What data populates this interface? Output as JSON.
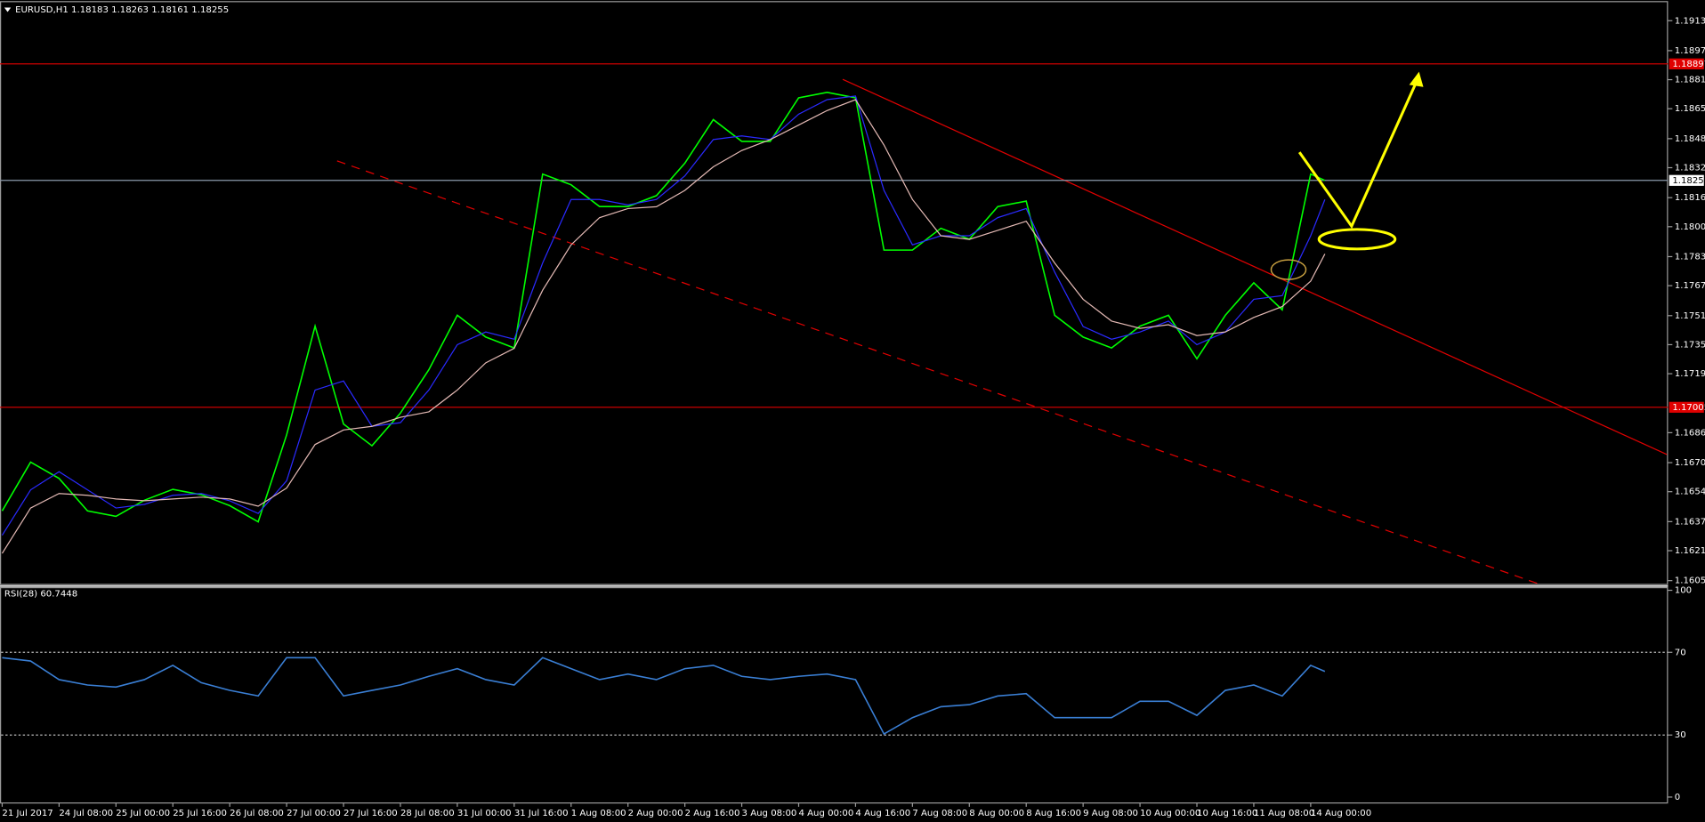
{
  "chart_data": [
    {
      "type": "line",
      "title": "EURUSD,H1  1.18183 1.18263 1.18161 1.18255",
      "x": [
        0,
        8,
        16,
        24,
        32,
        40,
        48,
        56,
        64,
        72,
        80,
        88,
        96,
        104,
        112,
        120,
        128,
        136,
        144,
        152,
        160,
        168,
        176,
        184,
        192,
        200,
        208,
        216,
        224,
        232,
        240,
        248,
        256,
        264,
        272,
        280,
        288,
        296,
        304,
        312,
        320,
        328,
        336,
        344,
        352,
        360,
        368,
        372
      ],
      "series": [
        {
          "color": "#00ff00",
          "values": [
            1.16434,
            1.16703,
            1.16613,
            1.16434,
            1.16404,
            1.16493,
            1.16553,
            1.16523,
            1.16463,
            1.16374,
            1.16853,
            1.17452,
            1.16913,
            1.16793,
            1.16973,
            1.17212,
            1.17512,
            1.17392,
            1.17332,
            1.1829,
            1.18231,
            1.18111,
            1.18111,
            1.18171,
            1.1835,
            1.1859,
            1.1847,
            1.1847,
            1.1871,
            1.1874,
            1.1871,
            1.17871,
            1.17871,
            1.17991,
            1.17931,
            1.18111,
            1.18141,
            1.17512,
            1.17392,
            1.17332,
            1.17452,
            1.17512,
            1.17272,
            1.17512,
            1.17691,
            1.17542,
            1.1829,
            1.18255
          ]
        },
        {
          "color": "#2a2aff",
          "values": [
            1.163,
            1.1655,
            1.1665,
            1.1655,
            1.1645,
            1.1647,
            1.1652,
            1.1653,
            1.1649,
            1.1642,
            1.166,
            1.171,
            1.1715,
            1.169,
            1.1692,
            1.171,
            1.1735,
            1.1742,
            1.1738,
            1.178,
            1.1815,
            1.1815,
            1.1812,
            1.1815,
            1.1828,
            1.1848,
            1.185,
            1.1848,
            1.1862,
            1.187,
            1.1872,
            1.182,
            1.179,
            1.1795,
            1.1795,
            1.1805,
            1.181,
            1.1775,
            1.1745,
            1.1738,
            1.1742,
            1.1748,
            1.1735,
            1.1742,
            1.176,
            1.1762,
            1.1795,
            1.1815
          ]
        },
        {
          "color": "#e3b9b4",
          "values": [
            1.162,
            1.1645,
            1.1653,
            1.1652,
            1.165,
            1.1649,
            1.165,
            1.1651,
            1.165,
            1.1646,
            1.1656,
            1.168,
            1.1688,
            1.169,
            1.1695,
            1.1698,
            1.171,
            1.1725,
            1.1733,
            1.1765,
            1.179,
            1.1805,
            1.181,
            1.1811,
            1.182,
            1.1833,
            1.1842,
            1.1848,
            1.1856,
            1.1864,
            1.187,
            1.1845,
            1.1815,
            1.1795,
            1.1793,
            1.1798,
            1.1803,
            1.178,
            1.176,
            1.1748,
            1.1744,
            1.1746,
            1.174,
            1.1742,
            1.175,
            1.1756,
            1.177,
            1.1785
          ]
        }
      ],
      "ylim": [
        1.16032,
        1.19237
      ],
      "yticks": [
        1.19135,
        {
          "value": 1.1897,
          "label": "1.18970"
        },
        {
          "value": 1.1881,
          "label": "1.18810"
        },
        {
          "value": 1.1865,
          "label": "1.18650"
        },
        1.18485,
        1.18325,
        {
          "value": 1.1816,
          "label": "1.18160"
        },
        {
          "value": 1.18,
          "label": "1.18000"
        },
        1.17835,
        1.17675,
        {
          "value": 1.1751,
          "label": "1.17510"
        },
        {
          "value": 1.1735,
          "label": "1.17350"
        },
        {
          "value": 1.1719,
          "label": "1.17190"
        },
        1.16865,
        {
          "value": 1.167,
          "label": "1.16700"
        },
        {
          "value": 1.1654,
          "label": "1.16540"
        },
        1.16375,
        1.16215,
        {
          "value": 1.1605,
          "label": "1.16050"
        }
      ],
      "levels": [
        {
          "value": 1.18897,
          "color": "#e00000"
        },
        {
          "value": 1.18255,
          "color": "#8c9aab"
        },
        {
          "value": 1.17005,
          "color": "#e00000"
        }
      ]
    },
    {
      "type": "line",
      "title": "RSI(28) 60.7448",
      "x": [
        0,
        8,
        16,
        24,
        32,
        40,
        48,
        56,
        64,
        72,
        80,
        88,
        96,
        104,
        112,
        120,
        128,
        136,
        144,
        152,
        160,
        168,
        176,
        184,
        192,
        200,
        208,
        216,
        224,
        232,
        240,
        248,
        256,
        264,
        272,
        280,
        288,
        296,
        304,
        312,
        320,
        328,
        336,
        344,
        352,
        360,
        368,
        372
      ],
      "series": [
        {
          "color": "#3a7fd5",
          "values": [
            67.4,
            65.8,
            56.8,
            54.2,
            53.2,
            56.8,
            63.7,
            55.3,
            51.6,
            48.9,
            67.4,
            67.4,
            48.9,
            51.6,
            54.2,
            58.4,
            62.1,
            56.8,
            54.2,
            67.4,
            62.1,
            56.8,
            59.5,
            56.8,
            62.1,
            63.7,
            58.4,
            56.8,
            58.4,
            59.5,
            56.8,
            30.5,
            38.4,
            43.7,
            44.7,
            48.9,
            50,
            38.4,
            38.4,
            38.4,
            46.3,
            46.3,
            39.5,
            51.6,
            54.2,
            48.9,
            63.7,
            60.7448
          ]
        }
      ],
      "ylim": [
        -2.6,
        101
      ],
      "yticks": [
        100,
        70,
        30,
        0
      ],
      "levels": [
        70,
        30
      ],
      "xticks": [
        {
          "value": 0,
          "label": "21 Jul 2017"
        },
        {
          "value": 16,
          "label": "24 Jul 08:00"
        },
        {
          "value": 32,
          "label": "25 Jul 00:00"
        },
        {
          "value": 48,
          "label": "25 Jul 16:00"
        },
        {
          "value": 64,
          "label": "26 Jul 08:00"
        },
        {
          "value": 80,
          "label": "27 Jul 00:00"
        },
        {
          "value": 96,
          "label": "27 Jul 16:00"
        },
        {
          "value": 112,
          "label": "28 Jul 08:00"
        },
        {
          "value": 128,
          "label": "31 Jul 00:00"
        },
        {
          "value": 144,
          "label": "31 Jul 16:00"
        },
        {
          "value": 160,
          "label": "1 Aug 08:00"
        },
        {
          "value": 176,
          "label": "2 Aug 00:00"
        },
        {
          "value": 192,
          "label": "2 Aug 16:00"
        },
        {
          "value": 208,
          "label": "3 Aug 08:00"
        },
        {
          "value": 224,
          "label": "4 Aug 00:00"
        },
        {
          "value": 240,
          "label": "4 Aug 16:00"
        },
        {
          "value": 256,
          "label": "7 Aug 08:00"
        },
        {
          "value": 272,
          "label": "8 Aug 00:00"
        },
        {
          "value": 288,
          "label": "8 Aug 16:00"
        },
        {
          "value": 304,
          "label": "9 Aug 08:00"
        },
        {
          "value": 320,
          "label": "10 Aug 00:00"
        },
        {
          "value": 336,
          "label": "10 Aug 16:00"
        },
        {
          "value": 352,
          "label": "11 Aug 08:00"
        },
        {
          "value": 368,
          "label": "14 Aug 00:00"
        }
      ]
    }
  ]
}
